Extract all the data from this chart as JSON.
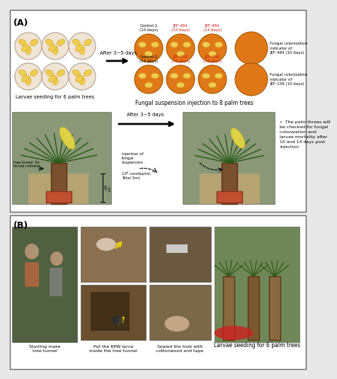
{
  "title_A": "(A)",
  "title_B": "(B)",
  "bg_color": "#e8e8e8",
  "orange_color": "#e07818",
  "larvae_bg": "#f0e4d4",
  "larvae_border": "#b8a898",
  "larvae_color": "#f0cc50",
  "after_text1": "After 3~5 days",
  "after_text2": "After 3~5 days",
  "text_larvae": "Larvae seeding for 6 palm trees",
  "text_fungal": "Fungal suspension injection to 8 palm trees",
  "control1": "Control-1\n(10 days)",
  "control2": "Control-2\n(14 days)",
  "sef484_10": "JEF-484\n(10 days)",
  "sef484_14": "JEF-484\n(14 days)",
  "sef158_10": "JEF-158\n(10 days)",
  "sef158_14": "JEF-158\n(14 days)",
  "fungal_484": "Fungal colonization\nindicator of\nJEF-484 (10 days)",
  "fungal_158": "Fungal colonization\nindicator of\nJEF-158 (10 days)",
  "palm_note": "The palm threes will\nbe checked for fungal\ncolonization and\nlarvae mortality after\n10 and 14 days post\ninjection",
  "injection": "Injection of\nfungal\nsuspension",
  "conidia": "10⁸ conidia/ml,\nTotal 5ml.",
  "tree_tunnel": "tree tunnel  for\nlarvae colonize",
  "bottom1": "Starting make\ntree tunnel",
  "bottom2": "Put the RPW larva\ninside the tree tunnel",
  "bottom3": "Sealed the hole with\ncottonwood and tape",
  "bottom4": "Larvae seeding for 6 palm trees",
  "red_color": "#cc1111",
  "panel_border": "#666666",
  "photo_palm1": "#6a8050",
  "photo_palm2": "#5a7848",
  "photo_green1": "#5a6a40",
  "photo_tan1": "#9a7850",
  "photo_tan2": "#8a6840",
  "photo_brown1": "#7a6050",
  "photo_brown2": "#6a5848",
  "photo_palm_big": "#708858",
  "dim_line": "#111111"
}
